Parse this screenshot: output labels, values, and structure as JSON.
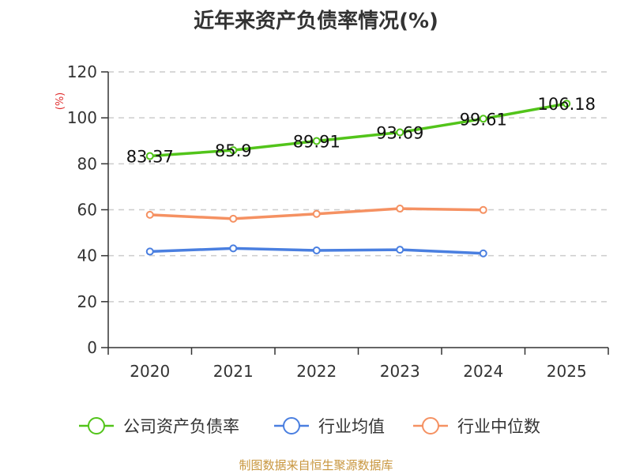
{
  "title": "近年来资产负债率情况(%)",
  "footer": "制图数据来自恒生聚源数据库",
  "chart_data": {
    "type": "line",
    "title": "近年来资产负债率情况(%)",
    "ylabel": "(%)",
    "xlabel": "",
    "ylim": [
      0,
      120
    ],
    "yticks": [
      0,
      20,
      40,
      60,
      80,
      100,
      120
    ],
    "categories": [
      "2020",
      "2021",
      "2022",
      "2023",
      "2024",
      "2025"
    ],
    "grid": true,
    "legend_position": "bottom",
    "series": [
      {
        "name": "公司资产负债率",
        "color": "#52c41a",
        "values": [
          83.37,
          85.9,
          89.91,
          93.69,
          99.61,
          106.18
        ],
        "labels": [
          "83.37",
          "85.9",
          "89.91",
          "93.69",
          "99.61",
          "106.18"
        ]
      },
      {
        "name": "行业均值",
        "color": "#4a7fe0",
        "values": [
          41.8,
          43.2,
          42.3,
          42.6,
          41.0,
          null
        ]
      },
      {
        "name": "行业中位数",
        "color": "#f59162",
        "values": [
          57.8,
          56.1,
          58.2,
          60.5,
          59.9,
          null
        ]
      }
    ]
  }
}
